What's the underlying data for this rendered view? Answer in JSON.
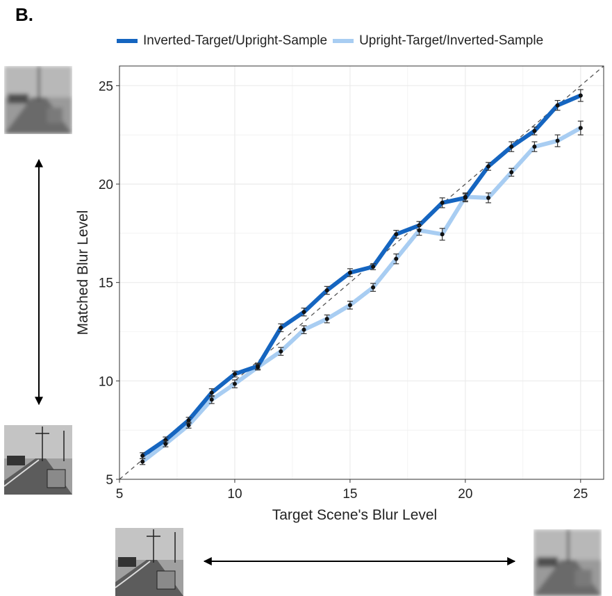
{
  "panel_label": "B.",
  "colors": {
    "series1": "#1565c0",
    "series2": "#a8cdf2",
    "point": "#111111",
    "grid": "#ebebeb",
    "diagonal": "#555555"
  },
  "chart_data": {
    "type": "line",
    "xlabel": "Target Scene's Blur Level",
    "ylabel": "Matched Blur Level",
    "xlim": [
      5,
      26
    ],
    "ylim": [
      5,
      26
    ],
    "xticks": [
      5,
      10,
      15,
      20,
      25
    ],
    "yticks": [
      5,
      10,
      15,
      20,
      25
    ],
    "legend_position": "top",
    "reference_line": "identity",
    "x": [
      6,
      7,
      8,
      9,
      10,
      11,
      12,
      13,
      14,
      15,
      16,
      17,
      18,
      19,
      20,
      21,
      22,
      23,
      24,
      25
    ],
    "series": [
      {
        "name": "Inverted-Target/Upright-Sample",
        "values": [
          6.2,
          7.0,
          8.0,
          9.4,
          10.35,
          10.75,
          12.7,
          13.5,
          14.6,
          15.5,
          15.8,
          17.45,
          17.9,
          19.05,
          19.3,
          20.9,
          21.9,
          22.7,
          24.0,
          24.5
        ],
        "errors": [
          0.15,
          0.15,
          0.15,
          0.2,
          0.15,
          0.15,
          0.2,
          0.2,
          0.2,
          0.2,
          0.15,
          0.2,
          0.2,
          0.25,
          0.2,
          0.2,
          0.25,
          0.2,
          0.25,
          0.3
        ]
      },
      {
        "name": "Upright-Target/Inverted-Sample",
        "values": [
          5.9,
          6.8,
          7.75,
          9.05,
          9.85,
          10.7,
          11.5,
          12.6,
          13.15,
          13.85,
          14.75,
          16.2,
          17.65,
          17.45,
          19.35,
          19.3,
          20.6,
          21.9,
          22.2,
          22.85
        ],
        "errors": [
          0.15,
          0.15,
          0.15,
          0.2,
          0.2,
          0.15,
          0.2,
          0.2,
          0.2,
          0.2,
          0.2,
          0.25,
          0.25,
          0.3,
          0.2,
          0.25,
          0.2,
          0.25,
          0.3,
          0.35
        ]
      }
    ]
  },
  "thumbnails": {
    "left_top": "blurred-highway-scene",
    "left_bottom": "sharp-highway-scene",
    "bottom_left": "sharp-highway-scene",
    "bottom_right": "blurred-highway-scene"
  }
}
